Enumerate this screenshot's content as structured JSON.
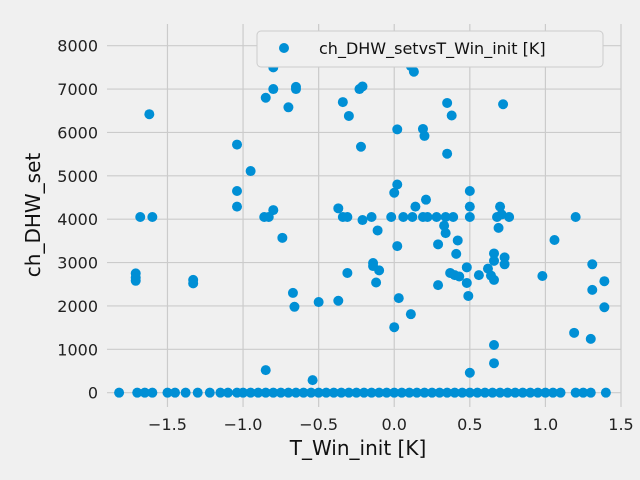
{
  "chart_data": {
    "type": "scatter",
    "xlabel": "T_Win_init [K]",
    "ylabel": "ch_DHW_set",
    "xlim": [
      -1.9,
      1.5
    ],
    "ylim": [
      -330,
      8500
    ],
    "xticks": [
      -1.5,
      -1.0,
      -0.5,
      0.0,
      0.5,
      1.0,
      1.5
    ],
    "xtick_labels": [
      "−1.5",
      "−1.0",
      "−0.5",
      "0.0",
      "0.5",
      "1.0",
      "1.5"
    ],
    "yticks": [
      0,
      1000,
      2000,
      3000,
      4000,
      5000,
      6000,
      7000,
      8000
    ],
    "ytick_labels": [
      "0",
      "1000",
      "2000",
      "3000",
      "4000",
      "5000",
      "6000",
      "7000",
      "8000"
    ],
    "grid": true,
    "legend_position": "top-right",
    "series": [
      {
        "name": "ch_DHW_setvsT_Win_init [K]",
        "color": "#008fd5",
        "points": [
          [
            -1.62,
            6420
          ],
          [
            -1.68,
            4050
          ],
          [
            -1.6,
            4050
          ],
          [
            -1.71,
            2750
          ],
          [
            -1.71,
            2650
          ],
          [
            -1.71,
            2580
          ],
          [
            -1.33,
            2600
          ],
          [
            -1.33,
            2520
          ],
          [
            -1.04,
            5720
          ],
          [
            -1.04,
            4650
          ],
          [
            -1.04,
            4290
          ],
          [
            -0.95,
            5110
          ],
          [
            -0.85,
            6800
          ],
          [
            -0.8,
            7500
          ],
          [
            -0.8,
            7000
          ],
          [
            -0.8,
            4210
          ],
          [
            -0.83,
            4050
          ],
          [
            -0.86,
            4050
          ],
          [
            -0.74,
            3570
          ],
          [
            -0.7,
            6580
          ],
          [
            -0.65,
            7050
          ],
          [
            -0.65,
            7000
          ],
          [
            -0.67,
            2300
          ],
          [
            -0.66,
            1980
          ],
          [
            -0.85,
            520
          ],
          [
            -0.54,
            290
          ],
          [
            -0.5,
            2090
          ],
          [
            -0.37,
            2120
          ],
          [
            -0.37,
            4250
          ],
          [
            -0.34,
            6700
          ],
          [
            -0.34,
            4050
          ],
          [
            -0.31,
            4050
          ],
          [
            -0.3,
            6380
          ],
          [
            -0.31,
            2760
          ],
          [
            -0.23,
            7000
          ],
          [
            -0.21,
            7060
          ],
          [
            -0.22,
            5670
          ],
          [
            -0.21,
            3980
          ],
          [
            -0.15,
            4050
          ],
          [
            -0.14,
            2990
          ],
          [
            -0.14,
            2920
          ],
          [
            -0.12,
            2540
          ],
          [
            -0.1,
            2820
          ],
          [
            -0.11,
            3740
          ],
          [
            -0.02,
            4050
          ],
          [
            0.0,
            4610
          ],
          [
            0.02,
            4800
          ],
          [
            0.02,
            6070
          ],
          [
            0.02,
            3380
          ],
          [
            0.03,
            2180
          ],
          [
            0.0,
            1510
          ],
          [
            0.06,
            8100
          ],
          [
            0.06,
            4050
          ],
          [
            0.1,
            7650
          ],
          [
            0.11,
            7530
          ],
          [
            0.13,
            7400
          ],
          [
            0.11,
            1810
          ],
          [
            0.12,
            4050
          ],
          [
            0.14,
            4290
          ],
          [
            0.19,
            6080
          ],
          [
            0.2,
            5920
          ],
          [
            0.19,
            4050
          ],
          [
            0.21,
            4450
          ],
          [
            0.22,
            4050
          ],
          [
            0.28,
            4050
          ],
          [
            0.29,
            3420
          ],
          [
            0.29,
            2480
          ],
          [
            0.33,
            3850
          ],
          [
            0.34,
            3680
          ],
          [
            0.35,
            6680
          ],
          [
            0.35,
            5510
          ],
          [
            0.38,
            6390
          ],
          [
            0.34,
            4050
          ],
          [
            0.39,
            4050
          ],
          [
            0.37,
            2760
          ],
          [
            0.4,
            2710
          ],
          [
            0.42,
            3510
          ],
          [
            0.41,
            3200
          ],
          [
            0.43,
            2680
          ],
          [
            0.48,
            2530
          ],
          [
            0.48,
            2890
          ],
          [
            0.49,
            2230
          ],
          [
            0.5,
            4650
          ],
          [
            0.5,
            4290
          ],
          [
            0.5,
            4050
          ],
          [
            0.5,
            460
          ],
          [
            0.56,
            2710
          ],
          [
            0.62,
            2860
          ],
          [
            0.64,
            2700
          ],
          [
            0.66,
            2600
          ],
          [
            0.66,
            3210
          ],
          [
            0.66,
            3040
          ],
          [
            0.66,
            1100
          ],
          [
            0.66,
            680
          ],
          [
            0.68,
            4050
          ],
          [
            0.7,
            4290
          ],
          [
            0.71,
            4110
          ],
          [
            0.69,
            3800
          ],
          [
            0.72,
            6650
          ],
          [
            0.73,
            3120
          ],
          [
            0.73,
            2960
          ],
          [
            0.76,
            4050
          ],
          [
            0.98,
            2690
          ],
          [
            1.06,
            3520
          ],
          [
            1.2,
            4050
          ],
          [
            1.19,
            1380
          ],
          [
            1.3,
            1240
          ],
          [
            1.31,
            2960
          ],
          [
            1.31,
            2370
          ],
          [
            1.39,
            2570
          ],
          [
            1.39,
            1970
          ],
          [
            -1.82,
            0
          ],
          [
            -1.7,
            0
          ],
          [
            -1.65,
            0
          ],
          [
            -1.6,
            0
          ],
          [
            -1.5,
            0
          ],
          [
            -1.45,
            0
          ],
          [
            -1.38,
            0
          ],
          [
            -1.3,
            0
          ],
          [
            -1.22,
            0
          ],
          [
            -1.15,
            0
          ],
          [
            -1.1,
            0
          ],
          [
            -1.04,
            0
          ],
          [
            -1.0,
            0
          ],
          [
            -0.95,
            0
          ],
          [
            -0.9,
            0
          ],
          [
            -0.85,
            0
          ],
          [
            -0.8,
            0
          ],
          [
            -0.75,
            0
          ],
          [
            -0.7,
            0
          ],
          [
            -0.65,
            0
          ],
          [
            -0.6,
            0
          ],
          [
            -0.55,
            0
          ],
          [
            -0.5,
            0
          ],
          [
            -0.45,
            0
          ],
          [
            -0.4,
            0
          ],
          [
            -0.35,
            0
          ],
          [
            -0.3,
            0
          ],
          [
            -0.25,
            0
          ],
          [
            -0.2,
            0
          ],
          [
            -0.15,
            0
          ],
          [
            -0.1,
            0
          ],
          [
            -0.05,
            0
          ],
          [
            0.0,
            0
          ],
          [
            0.05,
            0
          ],
          [
            0.1,
            0
          ],
          [
            0.15,
            0
          ],
          [
            0.2,
            0
          ],
          [
            0.25,
            0
          ],
          [
            0.3,
            0
          ],
          [
            0.35,
            0
          ],
          [
            0.4,
            0
          ],
          [
            0.45,
            0
          ],
          [
            0.5,
            0
          ],
          [
            0.55,
            0
          ],
          [
            0.6,
            0
          ],
          [
            0.65,
            0
          ],
          [
            0.7,
            0
          ],
          [
            0.75,
            0
          ],
          [
            0.8,
            0
          ],
          [
            0.85,
            0
          ],
          [
            0.9,
            0
          ],
          [
            0.95,
            0
          ],
          [
            1.0,
            0
          ],
          [
            1.05,
            0
          ],
          [
            1.1,
            0
          ],
          [
            1.2,
            0
          ],
          [
            1.25,
            0
          ],
          [
            1.3,
            0
          ],
          [
            1.4,
            0
          ]
        ]
      }
    ]
  }
}
